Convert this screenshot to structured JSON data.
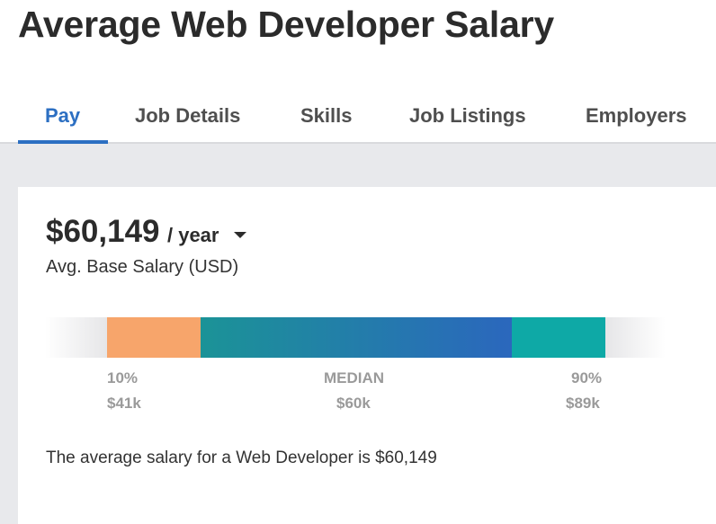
{
  "page": {
    "title": "Average Web Developer Salary"
  },
  "tabs": [
    {
      "label": "Pay",
      "active": true
    },
    {
      "label": "Job Details",
      "active": false
    },
    {
      "label": "Skills",
      "active": false
    },
    {
      "label": "Job Listings",
      "active": false
    },
    {
      "label": "Employers",
      "active": false
    }
  ],
  "salary": {
    "amount": "$60,149",
    "period": "/ year",
    "caret_icon": "caret-down-icon",
    "subtitle": "Avg. Base Salary (USD)"
  },
  "range": {
    "low": {
      "percentile": "10%",
      "value": "$41k"
    },
    "median": {
      "percentile": "MEDIAN",
      "value": "$60k"
    },
    "high": {
      "percentile": "90%",
      "value": "$89k"
    }
  },
  "summary": "The average salary for a Web Developer is $60,149",
  "colors": {
    "accent": "#2c6fc2",
    "low_segment": "#f7a56b",
    "mid_segment_start": "#1b9397",
    "mid_segment_end": "#2b67bd",
    "high_segment": "#0ea9a6"
  }
}
